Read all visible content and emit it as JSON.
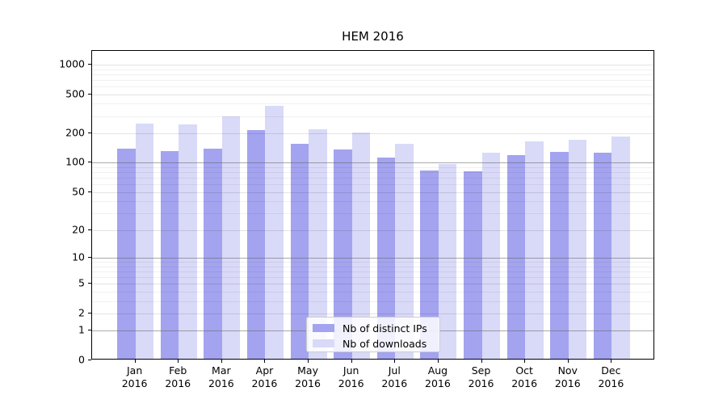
{
  "title": "HEM 2016",
  "legend": {
    "items": [
      {
        "label": "Nb of distinct IPs",
        "color": "#a3a3f0"
      },
      {
        "label": "Nb of downloads",
        "color": "#d9d9f8"
      }
    ]
  },
  "chart_data": {
    "type": "bar",
    "title": "HEM 2016",
    "categories": [
      {
        "month": "Jan",
        "year": "2016"
      },
      {
        "month": "Feb",
        "year": "2016"
      },
      {
        "month": "Mar",
        "year": "2016"
      },
      {
        "month": "Apr",
        "year": "2016"
      },
      {
        "month": "May",
        "year": "2016"
      },
      {
        "month": "Jun",
        "year": "2016"
      },
      {
        "month": "Jul",
        "year": "2016"
      },
      {
        "month": "Aug",
        "year": "2016"
      },
      {
        "month": "Sep",
        "year": "2016"
      },
      {
        "month": "Oct",
        "year": "2016"
      },
      {
        "month": "Nov",
        "year": "2016"
      },
      {
        "month": "Dec",
        "year": "2016"
      }
    ],
    "series": [
      {
        "name": "Nb of distinct IPs",
        "color": "#a3a3f0",
        "values": [
          134,
          126,
          134,
          207,
          152,
          133,
          109,
          80,
          79,
          115,
          125,
          123
        ]
      },
      {
        "name": "Nb of downloads",
        "color": "#d9d9f8",
        "values": [
          242,
          236,
          285,
          365,
          212,
          197,
          150,
          94,
          122,
          160,
          165,
          177
        ]
      }
    ],
    "xlabel": "",
    "ylabel": "",
    "yscale": "symlog",
    "y_ticks": [
      0,
      1,
      2,
      5,
      10,
      20,
      50,
      100,
      200,
      500,
      1000
    ],
    "y_major_emphasis": [
      1,
      10,
      100
    ],
    "y_minor_ticks": [
      3,
      4,
      6,
      7,
      8,
      9,
      30,
      40,
      60,
      70,
      80,
      90,
      300,
      400,
      600,
      700,
      800,
      900
    ],
    "ylim": [
      0,
      1378
    ],
    "grid": true,
    "legend_position": "inside lower-center"
  }
}
